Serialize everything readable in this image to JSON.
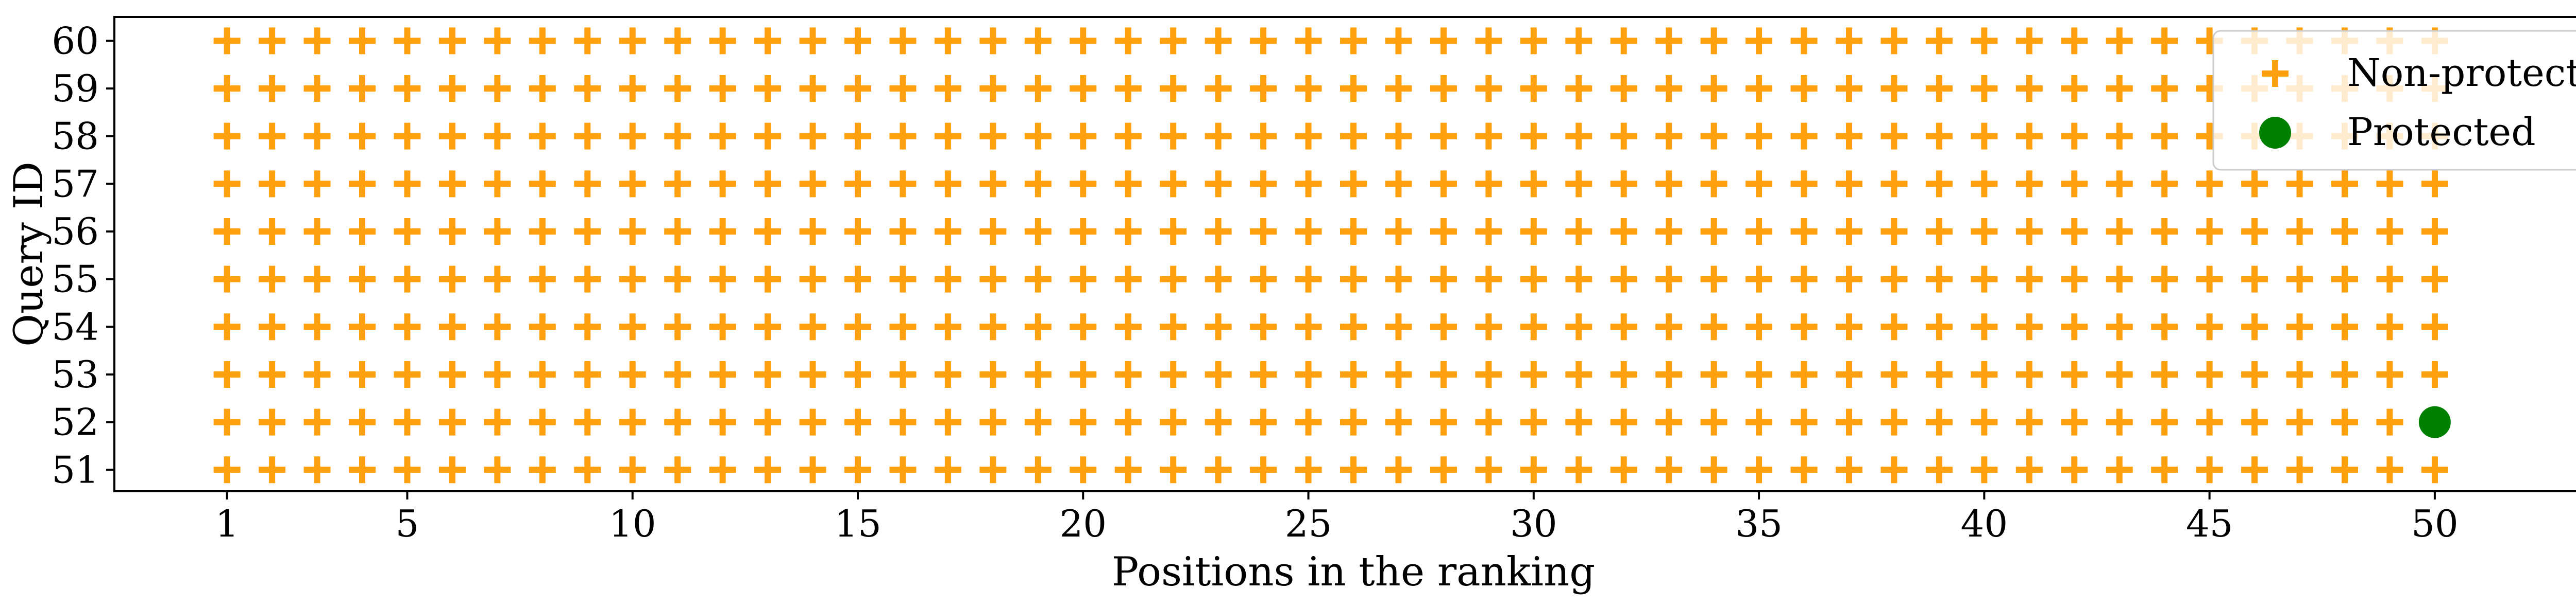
{
  "chart_data": {
    "type": "scatter",
    "xlabel": "Positions in the ranking",
    "ylabel": "Query ID",
    "xlim": [
      -1.5,
      53.5
    ],
    "ylim": [
      50.55,
      60.5
    ],
    "x_ticks": [
      1,
      5,
      10,
      15,
      20,
      25,
      30,
      35,
      40,
      45,
      50
    ],
    "y_ticks": [
      51,
      52,
      53,
      54,
      55,
      56,
      57,
      58,
      59,
      60
    ],
    "grid": false,
    "legend_position": "top-right",
    "series": [
      {
        "name": "Non-protected",
        "marker": "plus",
        "color": "#FFA00F",
        "fill": "all positions 1-50 for queries 51-60 except protected points"
      },
      {
        "name": "Protected",
        "marker": "circle",
        "color": "#008000",
        "points": [
          [
            50,
            52
          ]
        ]
      }
    ]
  }
}
